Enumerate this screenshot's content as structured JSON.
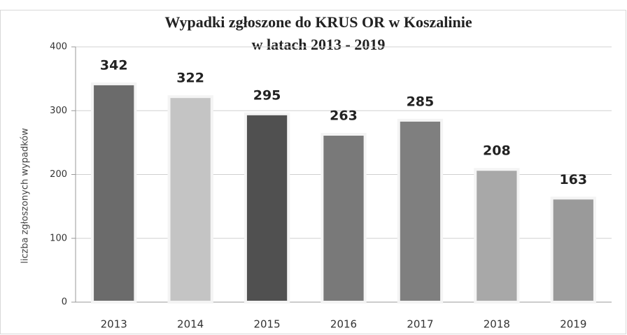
{
  "chart_data": {
    "type": "bar",
    "title": [
      "Wypadki zgłoszone do KRUS OR w Koszalinie",
      "w latach 2013 - 2019"
    ],
    "y_label": "liczba zgłoszonych wypadków",
    "categories": [
      "2013",
      "2014",
      "2015",
      "2016",
      "2017",
      "2018",
      "2019"
    ],
    "values": [
      342,
      322,
      295,
      263,
      285,
      208,
      163
    ],
    "colors": [
      "#6b6b6b",
      "#c4c4c4",
      "#505050",
      "#797979",
      "#7f7f7f",
      "#a8a8a8",
      "#9a9a9a"
    ],
    "ylim": [
      0,
      400
    ],
    "yticks": [
      0,
      100,
      200,
      300,
      400
    ],
    "grid": true
  }
}
